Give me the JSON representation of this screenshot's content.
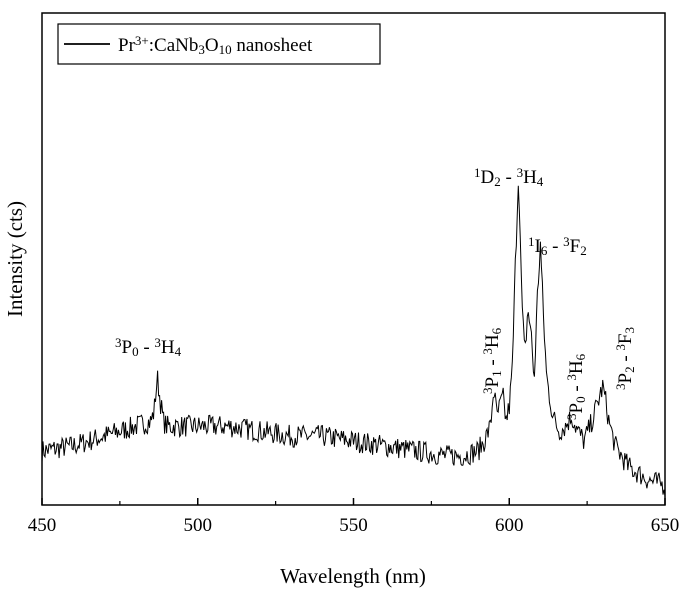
{
  "chart_data": {
    "type": "line",
    "xlabel": "Wavelength (nm)",
    "ylabel": "Intensity (cts)",
    "xlim": [
      450,
      650
    ],
    "xticks": [
      "450",
      "500",
      "550",
      "600",
      "650"
    ],
    "y_tick_labels": "none",
    "grid": false,
    "legend": {
      "placement": "top-left",
      "entries": [
        {
          "parts": [
            {
              "t": "Pr",
              "s": ""
            },
            {
              "t": "3+",
              "s": "sup"
            },
            {
              "t": ":CaNb",
              "s": ""
            },
            {
              "t": "3",
              "s": "sub"
            },
            {
              "t": "O",
              "s": ""
            },
            {
              "t": "10",
              "s": "sub"
            },
            {
              "t": " nanosheet",
              "s": ""
            }
          ]
        }
      ]
    },
    "annotations": [
      {
        "label_parts": [
          {
            "t": "3",
            "s": "sup"
          },
          {
            "t": "P",
            "s": ""
          },
          {
            "t": "0",
            "s": "sub"
          },
          {
            "t": " - ",
            "s": ""
          },
          {
            "t": "3",
            "s": "sup"
          },
          {
            "t": "H",
            "s": ""
          },
          {
            "t": "4",
            "s": "sub"
          }
        ],
        "x": 487,
        "rotation": 0
      },
      {
        "label_parts": [
          {
            "t": "1",
            "s": "sup"
          },
          {
            "t": "D",
            "s": ""
          },
          {
            "t": "2",
            "s": "sub"
          },
          {
            "t": " - ",
            "s": ""
          },
          {
            "t": "3",
            "s": "sup"
          },
          {
            "t": "H",
            "s": ""
          },
          {
            "t": "4",
            "s": "sub"
          }
        ],
        "x": 603,
        "rotation": 0
      },
      {
        "label_parts": [
          {
            "t": "1",
            "s": "sup"
          },
          {
            "t": "I",
            "s": ""
          },
          {
            "t": "6",
            "s": "sub"
          },
          {
            "t": " - ",
            "s": ""
          },
          {
            "t": "3",
            "s": "sup"
          },
          {
            "t": "F",
            "s": ""
          },
          {
            "t": "2",
            "s": "sub"
          }
        ],
        "x": 610,
        "rotation": 0
      },
      {
        "label_parts": [
          {
            "t": "3",
            "s": "sup"
          },
          {
            "t": "P",
            "s": ""
          },
          {
            "t": "1",
            "s": "sub"
          },
          {
            "t": " - ",
            "s": ""
          },
          {
            "t": "3",
            "s": "sup"
          },
          {
            "t": "H",
            "s": ""
          },
          {
            "t": "6",
            "s": "sub"
          }
        ],
        "x": 595,
        "rotation": -90
      },
      {
        "label_parts": [
          {
            "t": "3",
            "s": "sup"
          },
          {
            "t": "P",
            "s": ""
          },
          {
            "t": "0",
            "s": "sub"
          },
          {
            "t": " - ",
            "s": ""
          },
          {
            "t": "3",
            "s": "sup"
          },
          {
            "t": "H",
            "s": ""
          },
          {
            "t": "6",
            "s": "sub"
          }
        ],
        "x": 620,
        "rotation": -90
      },
      {
        "label_parts": [
          {
            "t": "3",
            "s": "sup"
          },
          {
            "t": "P",
            "s": ""
          },
          {
            "t": "2",
            "s": "sub"
          },
          {
            "t": " - ",
            "s": ""
          },
          {
            "t": "3",
            "s": "sup"
          },
          {
            "t": "F",
            "s": ""
          },
          {
            "t": "3",
            "s": "sub"
          }
        ],
        "x": 631,
        "rotation": -90
      }
    ],
    "series": [
      {
        "color": "#000000",
        "x": [
          450,
          460,
          470,
          480,
          485,
          486,
          487,
          488,
          489,
          490,
          495,
          500,
          510,
          520,
          530,
          540,
          550,
          560,
          570,
          580,
          585,
          590,
          592,
          594,
          595,
          596,
          597,
          598,
          599,
          600,
          601,
          602,
          603,
          604,
          605,
          606,
          607,
          608,
          609,
          610,
          611,
          612,
          614,
          616,
          618,
          620,
          622,
          624,
          626,
          628,
          630,
          631,
          632,
          634,
          636,
          638,
          640,
          645,
          650
        ],
        "y": [
          0.11,
          0.12,
          0.14,
          0.16,
          0.17,
          0.19,
          0.26,
          0.21,
          0.17,
          0.16,
          0.16,
          0.16,
          0.16,
          0.15,
          0.14,
          0.14,
          0.13,
          0.12,
          0.11,
          0.1,
          0.1,
          0.11,
          0.13,
          0.16,
          0.24,
          0.18,
          0.2,
          0.22,
          0.17,
          0.2,
          0.28,
          0.5,
          0.68,
          0.42,
          0.3,
          0.4,
          0.35,
          0.25,
          0.42,
          0.53,
          0.38,
          0.26,
          0.18,
          0.15,
          0.16,
          0.18,
          0.15,
          0.13,
          0.16,
          0.2,
          0.24,
          0.21,
          0.17,
          0.12,
          0.1,
          0.08,
          0.07,
          0.05,
          0.04
        ]
      }
    ]
  }
}
